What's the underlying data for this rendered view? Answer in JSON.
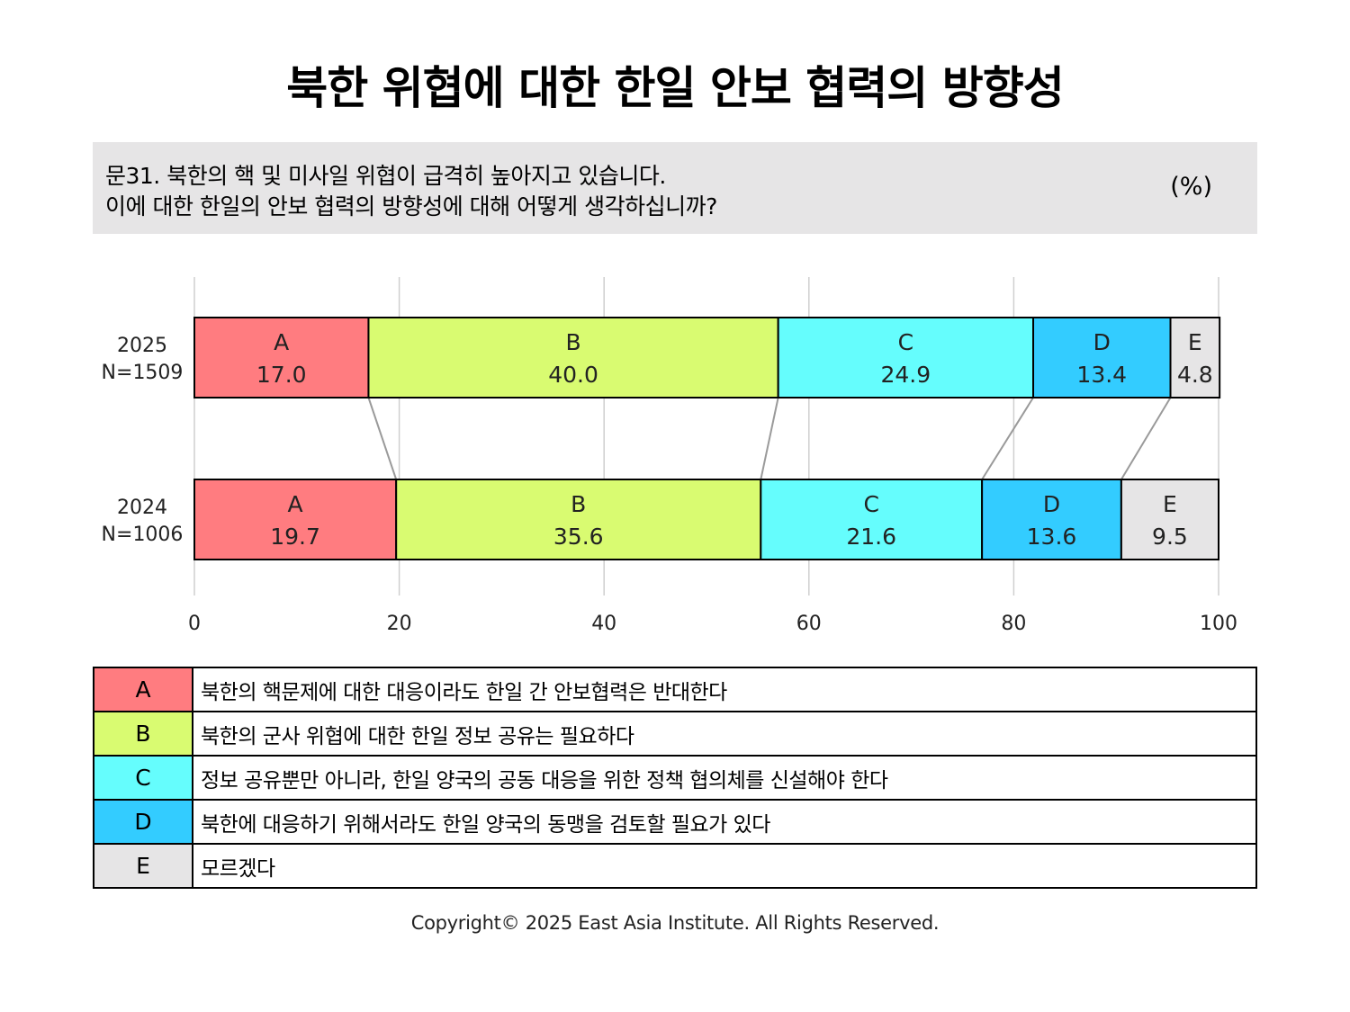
{
  "title": "북한 위협에 대한 한일 안보 협력의 방향성",
  "question": {
    "line1": "문31. 북한의 핵 및 미사일 위협이 급격히 높아지고 있습니다.",
    "line2": "이에 대한 한일의 안보 협력의 방향성에 대해 어떻게 생각하십니까?",
    "unit": "(%)"
  },
  "chart_data": {
    "type": "bar",
    "orientation": "horizontal",
    "stacked": true,
    "categories": [
      {
        "year": "2025",
        "n": "N=1509"
      },
      {
        "year": "2024",
        "n": "N=1006"
      }
    ],
    "series": [
      {
        "name": "A",
        "color": "#ff7c80",
        "values": [
          17.0,
          19.7
        ]
      },
      {
        "name": "B",
        "color": "#d9fb71",
        "values": [
          40.0,
          35.6
        ]
      },
      {
        "name": "C",
        "color": "#65fdfd",
        "values": [
          24.9,
          21.6
        ]
      },
      {
        "name": "D",
        "color": "#33ccff",
        "values": [
          13.4,
          13.6
        ]
      },
      {
        "name": "E",
        "color": "#e6e5e6",
        "values": [
          4.8,
          9.5
        ]
      }
    ],
    "value_labels": [
      [
        "17.0",
        "40.0",
        "24.9",
        "13.4",
        "4.8"
      ],
      [
        "19.7",
        "35.6",
        "21.6",
        "13.6",
        "9.5"
      ]
    ],
    "xlim": [
      0,
      100
    ],
    "xticks": [
      "0",
      "20",
      "40",
      "60",
      "80",
      "100"
    ],
    "grid": true
  },
  "legend": [
    {
      "code": "A",
      "color": "#ff7c80",
      "text": "북한의 핵문제에 대한 대응이라도 한일 간 안보협력은 반대한다"
    },
    {
      "code": "B",
      "color": "#d9fb71",
      "text": "북한의 군사 위협에 대한 한일 정보 공유는 필요하다"
    },
    {
      "code": "C",
      "color": "#65fdfd",
      "text": "정보 공유뿐만 아니라, 한일 양국의 공동 대응을 위한 정책 협의체를 신설해야 한다"
    },
    {
      "code": "D",
      "color": "#33ccff",
      "text": "북한에 대응하기 위해서라도 한일 양국의 동맹을 검토할 필요가 있다"
    },
    {
      "code": "E",
      "color": "#e6e5e6",
      "text": "모르겠다"
    }
  ],
  "copyright": "Copyright© 2025 East Asia Institute. All Rights Reserved."
}
